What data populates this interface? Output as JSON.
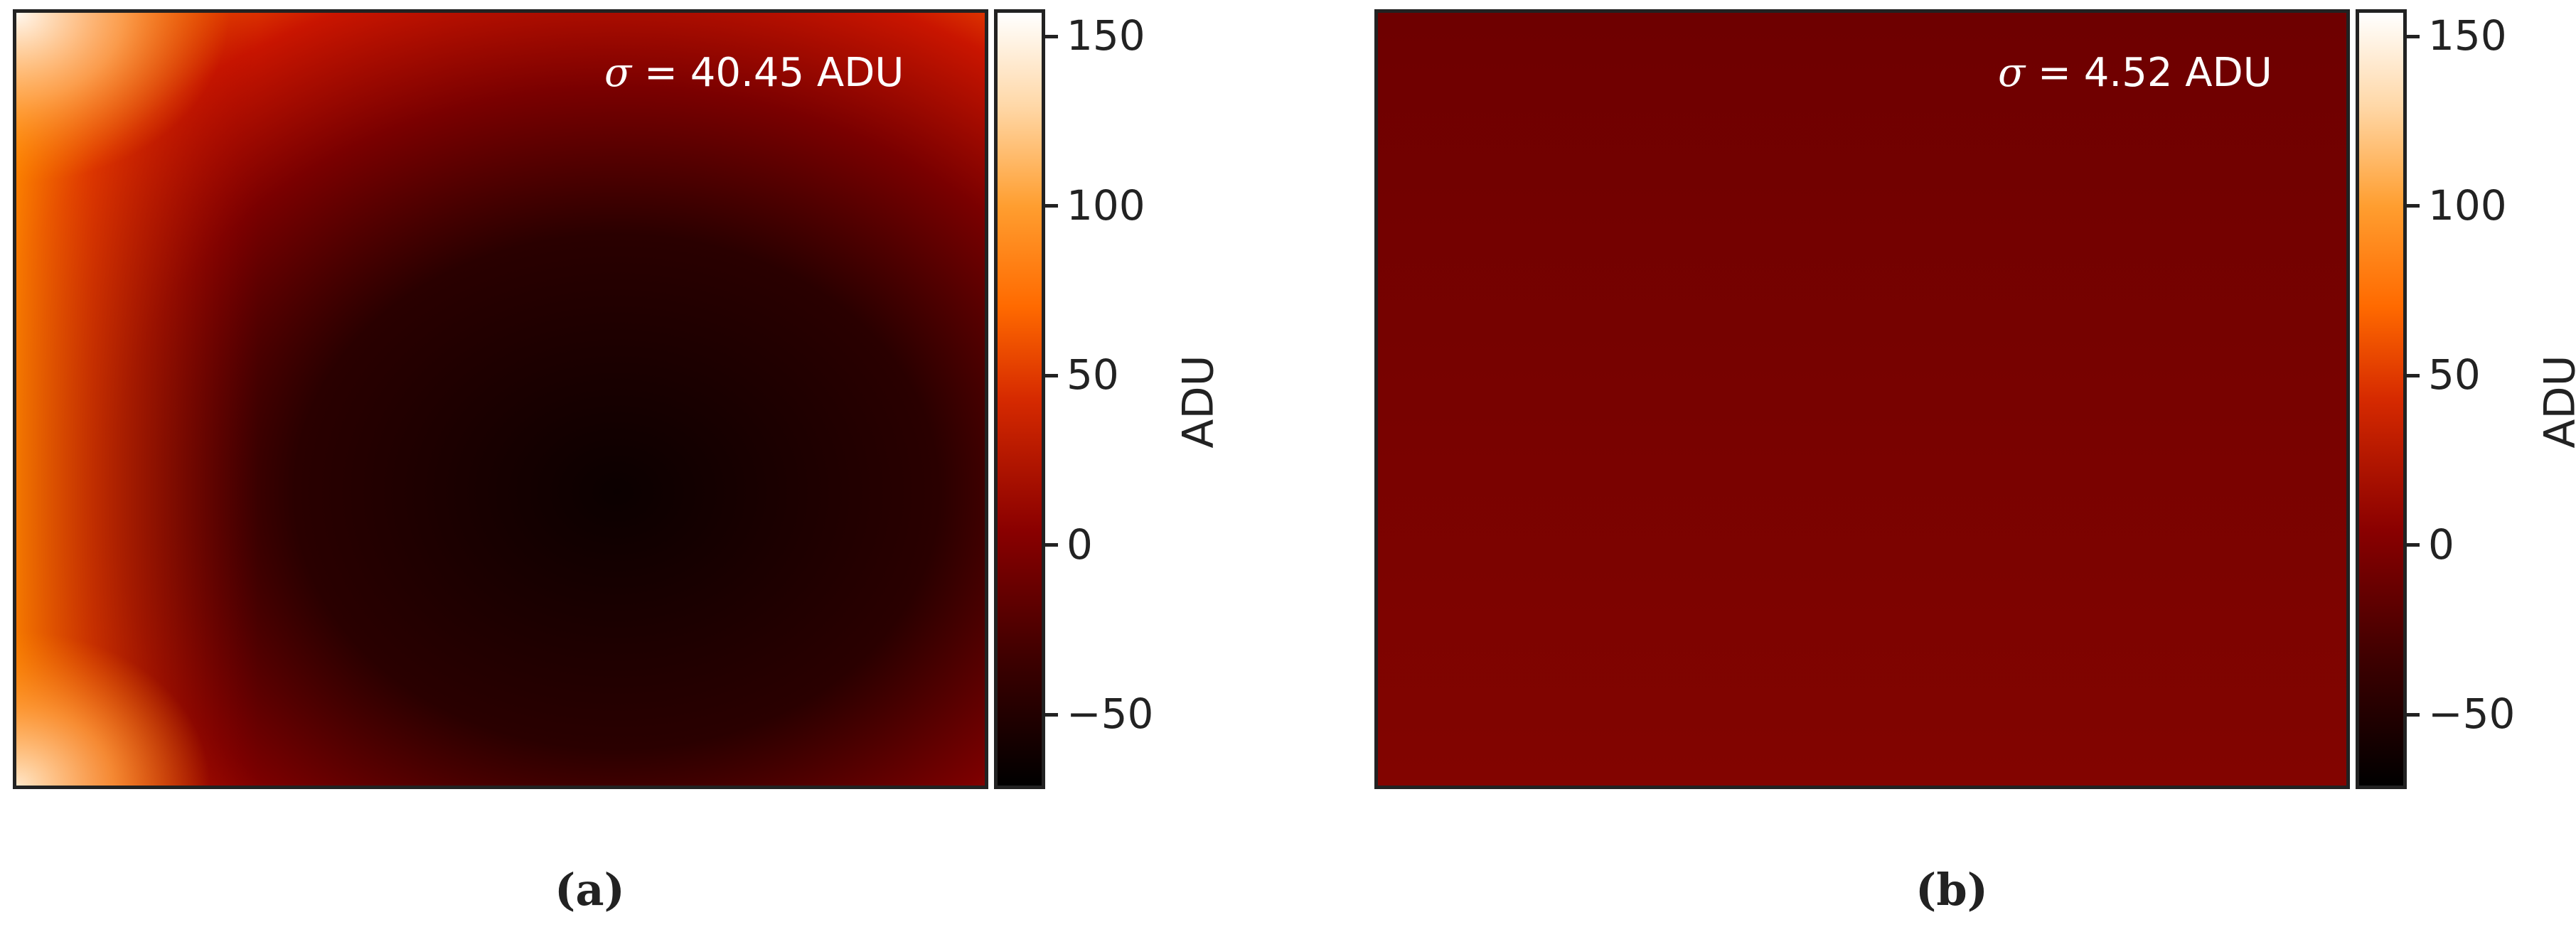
{
  "chart_data": [
    {
      "type": "heatmap",
      "panel": "(a)",
      "annotation": "= 40.45 ADU",
      "sigma_symbol": "σ",
      "sigma_value": 40.45,
      "colorbar": {
        "label": "ADU",
        "range": [
          -72,
          158
        ],
        "ticks": [
          -50,
          0,
          50,
          100,
          150
        ],
        "tick_labels": [
          "−50",
          "0",
          "50",
          "100",
          "150"
        ],
        "colormap": "gist_heat"
      },
      "field": "smooth bowl: minimum about −60 ADU near centre, rising to about 150 ADU at the left corners"
    },
    {
      "type": "heatmap",
      "panel": "(b)",
      "annotation": "= 4.52 ADU",
      "sigma_symbol": "σ",
      "sigma_value": 4.52,
      "colorbar": {
        "label": "ADU",
        "range": [
          -72,
          158
        ],
        "ticks": [
          -50,
          0,
          50,
          100,
          150
        ],
        "tick_labels": [
          "−50",
          "0",
          "50",
          "100",
          "150"
        ],
        "colormap": "gist_heat"
      },
      "field": "nearly uniform at about 0 ADU"
    }
  ],
  "colors": {
    "frame": "#222222",
    "colormap_stops": [
      "#000000",
      "#6b0000",
      "#d62a00",
      "#ff8a00",
      "#ffffff"
    ]
  }
}
